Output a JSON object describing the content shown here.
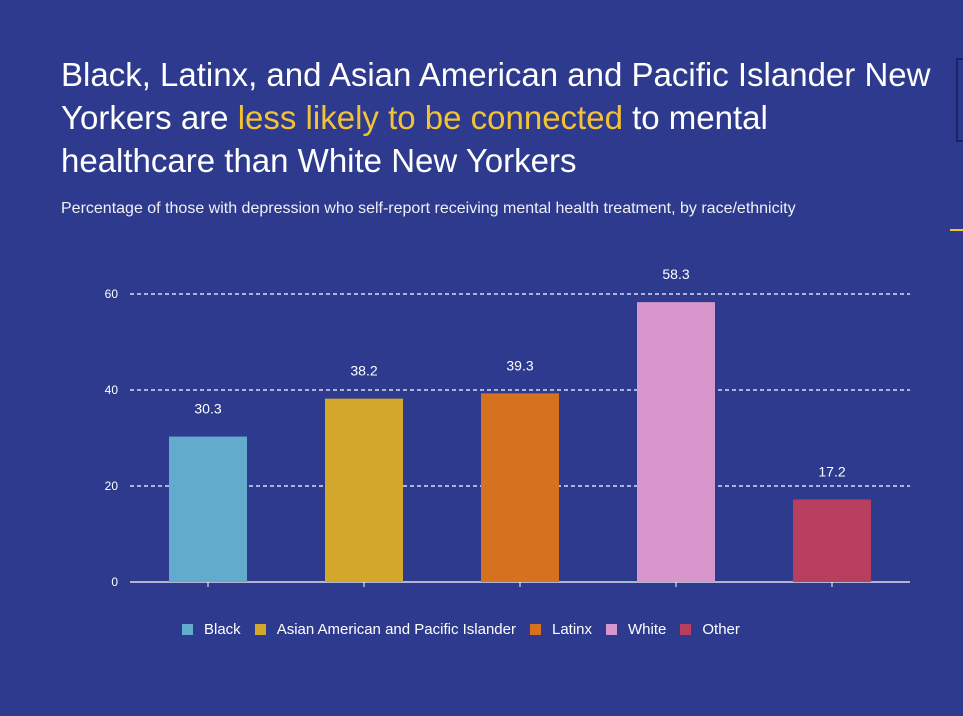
{
  "header": {
    "title_part1": "Black, Latinx, and Asian American and Pacific Islander New Yorkers are ",
    "title_highlight": "less likely to be connected",
    "title_part2": " to mental healthcare than White New Yorkers",
    "subtitle": "Percentage of those with depression who self-report receiving mental health treatment, by race/ethnicity"
  },
  "colors": {
    "background": "#2d3a8e",
    "highlight": "#f3c235"
  },
  "chart_data": {
    "type": "bar",
    "categories": [
      "Black",
      "Asian American and Pacific Islander",
      "Latinx",
      "White",
      "Other"
    ],
    "values": [
      30.3,
      38.2,
      39.3,
      58.3,
      17.2
    ],
    "colors": [
      "#63abcd",
      "#d3a72b",
      "#d6711f",
      "#d797cc",
      "#b83e5f"
    ],
    "title": "",
    "xlabel": "",
    "ylabel": "",
    "ylim": [
      0,
      60
    ],
    "yticks": [
      0,
      20,
      40,
      60
    ],
    "grid": true,
    "legend": "bottom"
  }
}
